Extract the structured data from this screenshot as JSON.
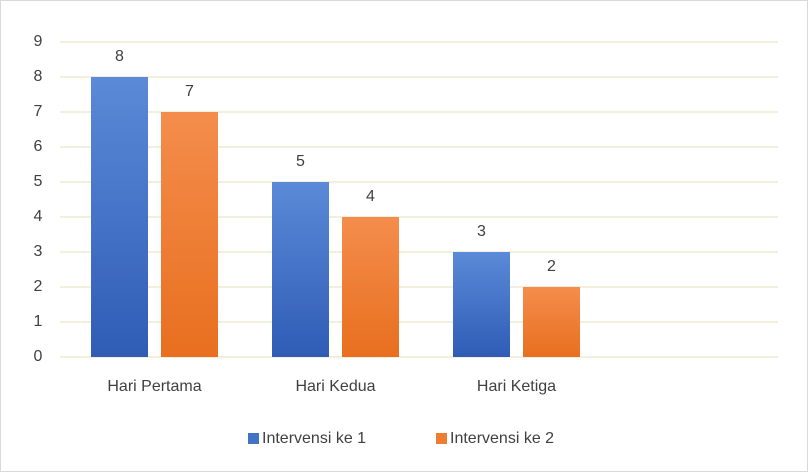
{
  "chart_data": {
    "type": "bar",
    "categories": [
      "Hari Pertama",
      "Hari Kedua",
      "Hari Ketiga",
      null
    ],
    "series": [
      {
        "name": "Intervensi ke 1",
        "color": "#4472c4",
        "values": [
          8,
          5,
          3,
          null
        ]
      },
      {
        "name": "Intervensi ke 2",
        "color": "#ed7d31",
        "values": [
          7,
          4,
          2,
          null
        ]
      }
    ],
    "ylim": [
      0,
      9
    ],
    "yticks": [
      0,
      1,
      2,
      3,
      4,
      5,
      6,
      7,
      8,
      9
    ],
    "grid": true,
    "legend": "bottom"
  }
}
